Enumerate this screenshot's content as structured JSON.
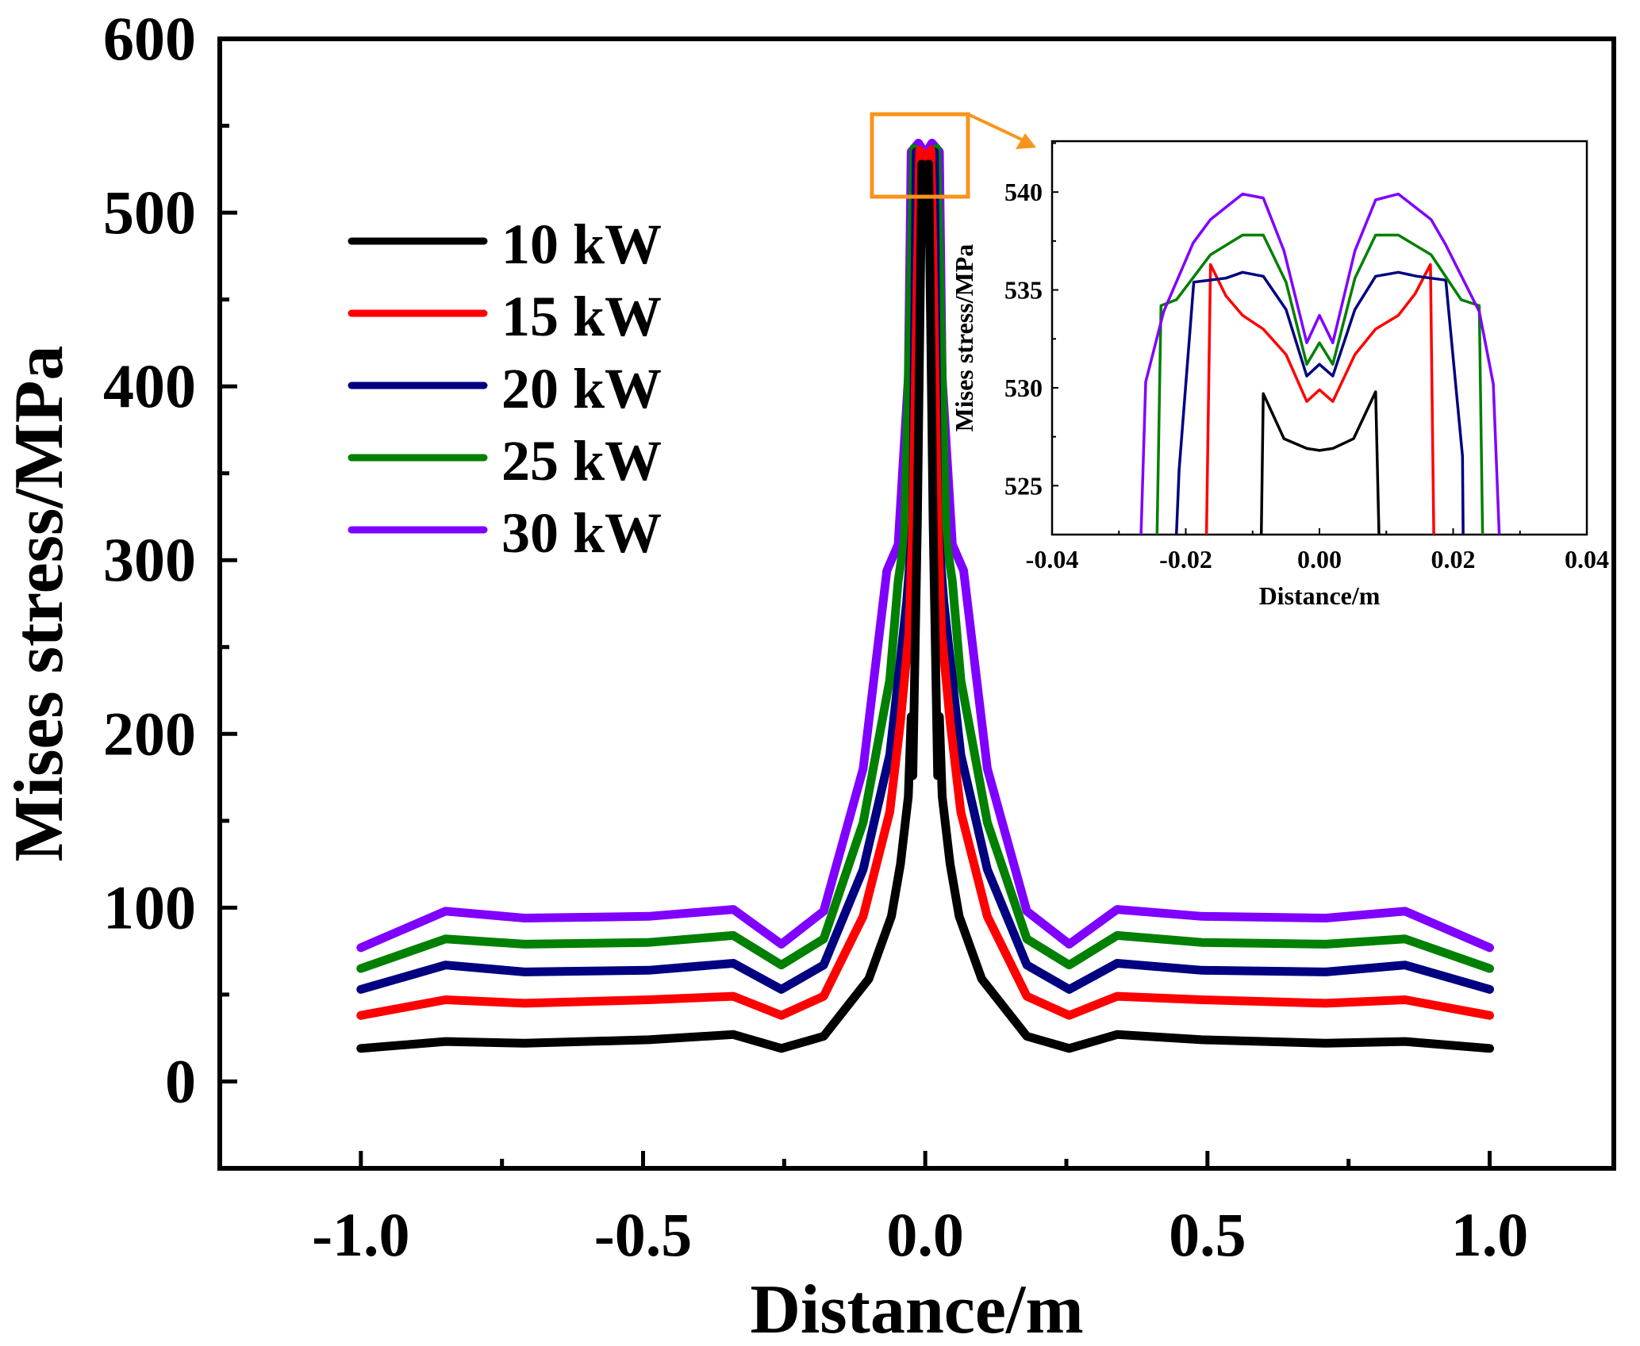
{
  "chart_data": [
    {
      "type": "line",
      "title": "",
      "xlabel": "Distance/m",
      "ylabel": "Mises stress/MPa",
      "xlim": [
        -1.25,
        1.22
      ],
      "ylim": [
        -50,
        600
      ],
      "xticks": [
        -1.0,
        -0.5,
        0.0,
        0.5,
        1.0
      ],
      "xtick_labels": [
        "-1.0",
        "-0.5",
        "0.0",
        "0.5",
        "1.0"
      ],
      "yticks": [
        0,
        100,
        200,
        300,
        400,
        500,
        600
      ],
      "ytick_labels": [
        "0",
        "100",
        "200",
        "300",
        "400",
        "500",
        "600"
      ],
      "grid": false,
      "legend_position": "upper-left",
      "series": [
        {
          "name": "10 kW",
          "color": "#000000",
          "x": [
            -1.0,
            -0.85,
            -0.71,
            -0.49,
            -0.34,
            -0.255,
            -0.18,
            -0.1,
            -0.06,
            -0.044,
            -0.03,
            -0.025,
            -0.022,
            -0.014,
            -0.006,
            0.0,
            0.006,
            0.014,
            0.022,
            0.025,
            0.03,
            0.044,
            0.06,
            0.1,
            0.18,
            0.255,
            0.34,
            0.49,
            0.71,
            0.85,
            1.0
          ],
          "y": [
            19,
            23,
            22,
            24,
            27,
            19,
            26,
            59,
            95,
            125,
            164,
            210,
            176,
            321,
            528,
            526,
            528,
            321,
            176,
            210,
            164,
            125,
            95,
            59,
            26,
            19,
            27,
            24,
            22,
            23,
            19
          ]
        },
        {
          "name": "15 kW",
          "color": "#ff0000",
          "x": [
            -1.0,
            -0.85,
            -0.71,
            -0.49,
            -0.34,
            -0.255,
            -0.18,
            -0.11,
            -0.063,
            -0.044,
            -0.029,
            -0.022,
            -0.01,
            0.0,
            0.01,
            0.022,
            0.029,
            0.044,
            0.063,
            0.11,
            0.18,
            0.255,
            0.34,
            0.49,
            0.71,
            0.85,
            1.0
          ],
          "y": [
            38,
            47,
            45,
            47,
            49,
            38,
            49,
            95,
            155,
            207,
            258,
            321,
            536,
            530,
            536,
            321,
            258,
            207,
            155,
            95,
            49,
            38,
            49,
            47,
            45,
            47,
            38
          ]
        },
        {
          "name": "20 kW",
          "color": "#000080",
          "x": [
            -1.0,
            -0.85,
            -0.71,
            -0.49,
            -0.34,
            -0.255,
            -0.18,
            -0.11,
            -0.063,
            -0.044,
            -0.033,
            -0.022,
            -0.016,
            0.0,
            0.016,
            0.022,
            0.033,
            0.044,
            0.063,
            0.11,
            0.18,
            0.255,
            0.34,
            0.49,
            0.71,
            0.85,
            1.0
          ],
          "y": [
            53,
            67,
            63,
            64,
            68,
            53,
            67,
            122,
            188,
            243,
            276,
            321,
            535,
            531,
            535,
            321,
            276,
            243,
            188,
            122,
            67,
            53,
            68,
            64,
            63,
            67,
            53
          ]
        },
        {
          "name": "25 kW",
          "color": "#008000",
          "x": [
            -1.0,
            -0.85,
            -0.71,
            -0.49,
            -0.34,
            -0.255,
            -0.18,
            -0.11,
            -0.063,
            -0.048,
            -0.037,
            -0.02,
            0.0,
            0.02,
            0.037,
            0.048,
            0.063,
            0.11,
            0.18,
            0.255,
            0.34,
            0.49,
            0.71,
            0.85,
            1.0
          ],
          "y": [
            65,
            82,
            79,
            80,
            84,
            67,
            82,
            149,
            231,
            288,
            312,
            537,
            532,
            537,
            312,
            288,
            231,
            149,
            82,
            67,
            84,
            80,
            79,
            82,
            65
          ]
        },
        {
          "name": "30 kW",
          "color": "#8000ff",
          "x": [
            -1.0,
            -0.85,
            -0.71,
            -0.49,
            -0.34,
            -0.255,
            -0.18,
            -0.11,
            -0.068,
            -0.048,
            -0.03,
            -0.025,
            -0.012,
            0.0,
            0.012,
            0.025,
            0.03,
            0.048,
            0.068,
            0.11,
            0.18,
            0.255,
            0.34,
            0.49,
            0.71,
            0.85,
            1.0
          ],
          "y": [
            77,
            98,
            94,
            95,
            99,
            79,
            98,
            180,
            294,
            309,
            405,
            535,
            540,
            534,
            540,
            535,
            405,
            309,
            294,
            180,
            98,
            79,
            99,
            95,
            94,
            98,
            77
          ]
        }
      ]
    },
    {
      "type": "line",
      "title": "inset (zoom of peak region)",
      "xlabel": "Distance/m",
      "ylabel": "Mises stress/MPa",
      "xlim": [
        -0.04,
        0.04
      ],
      "ylim": [
        522.5,
        542.6
      ],
      "xticks": [
        -0.04,
        -0.02,
        0.0,
        0.02,
        0.04
      ],
      "xtick_labels": [
        "-0.04",
        "-0.02",
        "0.00",
        "0.02",
        "0.04"
      ],
      "yticks": [
        525,
        530,
        535,
        540
      ],
      "ytick_labels": [
        "525",
        "530",
        "535",
        "540"
      ],
      "grid": false,
      "series": [
        {
          "name": "10 kW",
          "color": "#000000",
          "x": [
            -0.0087,
            -0.0084,
            -0.0053,
            -0.0019,
            0.0,
            0.002,
            0.0051,
            0.0084,
            0.0089
          ],
          "y": [
            522.5,
            529.7,
            527.4,
            526.9,
            526.8,
            526.9,
            527.4,
            529.8,
            522.5
          ]
        },
        {
          "name": "15 kW",
          "color": "#ff0000",
          "x": [
            -0.0169,
            -0.0163,
            -0.014,
            -0.0115,
            -0.0084,
            -0.005,
            -0.0019,
            0.0,
            0.002,
            0.0053,
            0.0084,
            0.0118,
            0.0143,
            0.0166,
            0.0171
          ],
          "y": [
            522.5,
            536.3,
            534.7,
            533.7,
            533.0,
            531.7,
            529.3,
            529.9,
            529.3,
            531.7,
            533.0,
            533.7,
            534.8,
            536.3,
            522.5
          ]
        },
        {
          "name": "20 kW",
          "color": "#000080",
          "x": [
            -0.0214,
            -0.021,
            -0.0188,
            -0.014,
            -0.0115,
            -0.0084,
            -0.005,
            -0.0019,
            0.0,
            0.002,
            0.0053,
            0.0084,
            0.0118,
            0.0146,
            0.0189,
            0.0214,
            0.0215
          ],
          "y": [
            522.5,
            525.8,
            535.4,
            535.6,
            535.9,
            535.7,
            534.0,
            530.6,
            531.2,
            530.6,
            534.0,
            535.7,
            535.9,
            535.7,
            535.5,
            526.5,
            522.5
          ]
        },
        {
          "name": "25 kW",
          "color": "#008000",
          "x": [
            -0.0243,
            -0.0237,
            -0.0214,
            -0.0163,
            -0.0115,
            -0.0084,
            -0.005,
            -0.0019,
            0.0,
            0.002,
            0.0053,
            0.0084,
            0.0118,
            0.0167,
            0.0212,
            0.0239,
            0.0244
          ],
          "y": [
            522.5,
            534.2,
            534.5,
            536.8,
            537.8,
            537.8,
            535.4,
            531.2,
            532.3,
            531.2,
            535.6,
            537.8,
            537.8,
            536.8,
            534.5,
            534.2,
            522.5
          ]
        },
        {
          "name": "30 kW",
          "color": "#8000ff",
          "x": [
            -0.0267,
            -0.026,
            -0.0233,
            -0.0189,
            -0.0163,
            -0.0115,
            -0.0084,
            -0.0053,
            -0.0019,
            0.0,
            0.002,
            0.0053,
            0.0084,
            0.0118,
            0.0167,
            0.0189,
            0.0239,
            0.026,
            0.0269
          ],
          "y": [
            522.5,
            530.3,
            533.9,
            537.4,
            538.6,
            539.9,
            539.7,
            537.0,
            532.3,
            533.7,
            532.3,
            537.0,
            539.6,
            539.9,
            538.6,
            537.3,
            533.9,
            530.2,
            522.5
          ]
        }
      ]
    }
  ],
  "highlight_box_color": "#f7941d"
}
